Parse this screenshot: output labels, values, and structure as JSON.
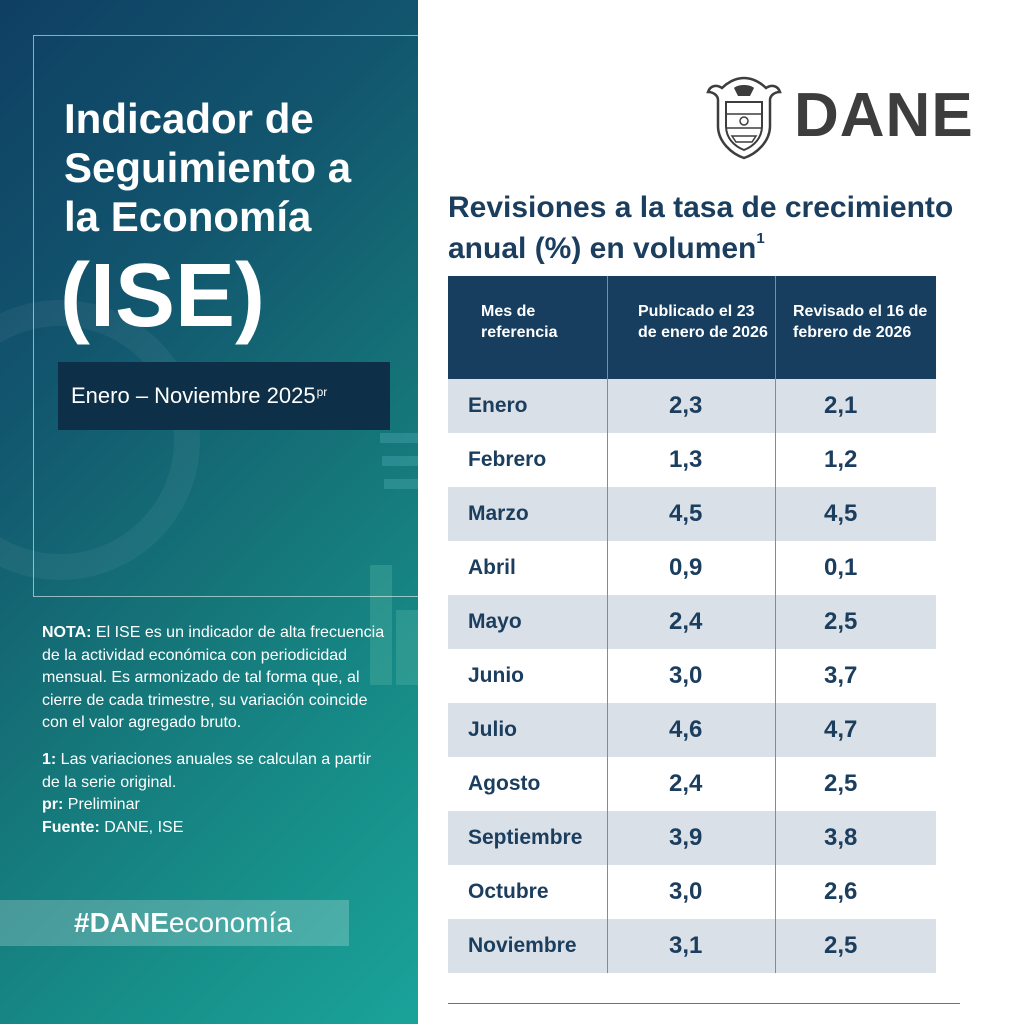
{
  "left": {
    "title": "Indicador de Seguimiento a la Economía",
    "acronym": "(ISE)",
    "period": "Enero – Noviembre 2025",
    "period_sup": "pr",
    "notes": {
      "nota_label": "NOTA:",
      "nota_text": " El ISE es un indicador de alta frecuencia de la actividad económica con periodicidad mensual. Es armonizado de tal forma que, al cierre de cada trimestre, su variación coincide con el valor agregado bruto.",
      "n1_label": "1:",
      "n1_text": " Las variaciones anuales se calculan a partir de la serie original.",
      "pr_label": "pr:",
      "pr_text": " Preliminar",
      "fuente_label": "Fuente:",
      "fuente_text": " DANE, ISE"
    },
    "hashtag_bold": "#DANE",
    "hashtag_rest": "economía"
  },
  "logo": {
    "text": "DANE",
    "icon": "colombia-coat-of-arms-icon"
  },
  "heading": {
    "text": "Revisiones a la tasa de crecimiento anual (%) en volumen",
    "sup": "1"
  },
  "table": {
    "headers": [
      "Mes de referencia",
      "Publicado el 23 de enero de 2026",
      "Revisado el 16 de febrero de 2026"
    ],
    "rows": [
      [
        "Enero",
        "2,3",
        "2,1"
      ],
      [
        "Febrero",
        "1,3",
        "1,2"
      ],
      [
        "Marzo",
        "4,5",
        "4,5"
      ],
      [
        "Abril",
        "0,9",
        "0,1"
      ],
      [
        "Mayo",
        "2,4",
        "2,5"
      ],
      [
        "Junio",
        "3,0",
        "3,7"
      ],
      [
        "Julio",
        "4,6",
        "4,7"
      ],
      [
        "Agosto",
        "2,4",
        "2,5"
      ],
      [
        "Septiembre",
        "3,9",
        "3,8"
      ],
      [
        "Octubre",
        "3,0",
        "2,6"
      ],
      [
        "Noviembre",
        "3,1",
        "2,5"
      ]
    ]
  }
}
